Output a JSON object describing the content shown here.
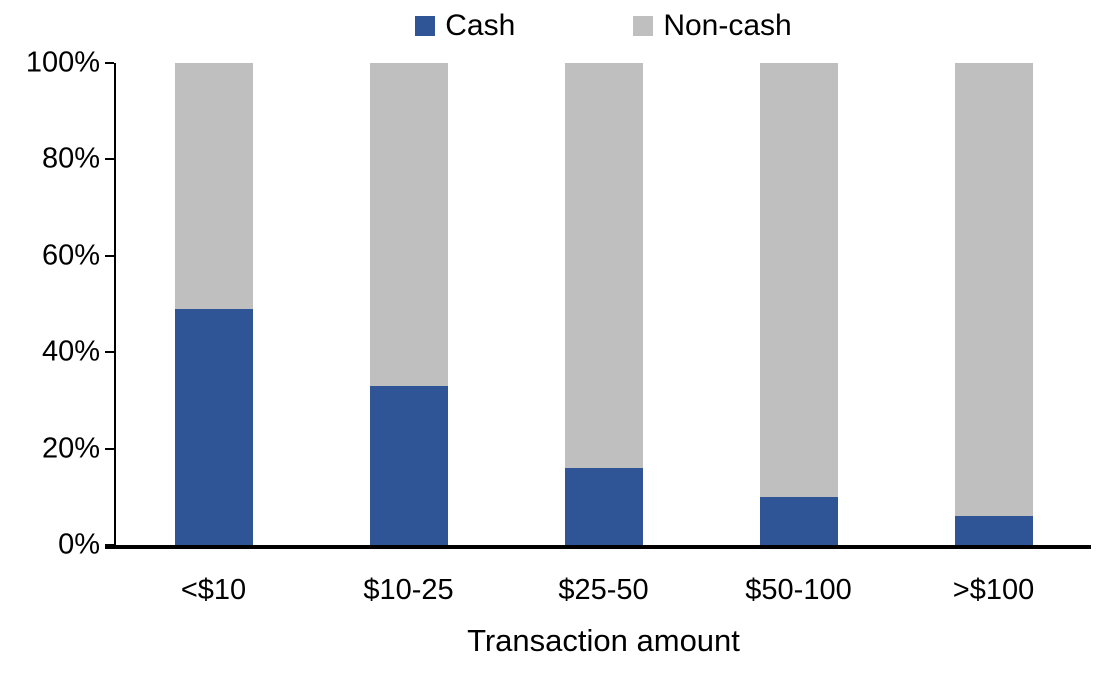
{
  "chart_data": {
    "type": "bar",
    "stacked": true,
    "percent_stacked": true,
    "title": "",
    "xlabel": "Transaction amount",
    "ylabel": "",
    "categories": [
      "<$10",
      "$10-25",
      "$25-50",
      "$50-100",
      ">$100"
    ],
    "series": [
      {
        "name": "Cash",
        "color": "#2F5597",
        "values": [
          49,
          33,
          16,
          10,
          6
        ]
      },
      {
        "name": "Non-cash",
        "color": "#BFBFBF",
        "values": [
          51,
          67,
          84,
          90,
          94
        ]
      }
    ],
    "ylim": [
      0,
      100
    ],
    "ytick_values": [
      0,
      20,
      40,
      60,
      80,
      100
    ],
    "ytick_labels": [
      "0%",
      "20%",
      "40%",
      "60%",
      "80%",
      "100%"
    ],
    "grid": false,
    "legend_position": "top",
    "axis_color": "#000000",
    "background_color": "#FFFFFF"
  }
}
